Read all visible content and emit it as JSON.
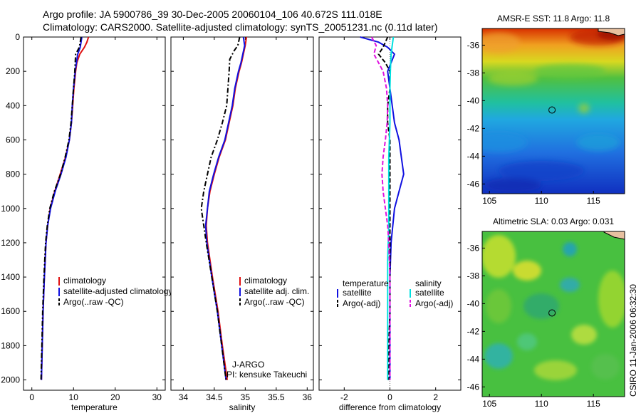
{
  "header": {
    "line1": "Argo profile: JA 5900786_39 30-Dec-2005 20060104_106 40.672S 111.018E",
    "line2": "Climatology: CARS2000. Satellite-adjusted climatology: synTS_20051231.nc (0.11d later)"
  },
  "side_label": "CSIRO 11-Jan-2006 06:32:30",
  "colors": {
    "climatology": "#e01010",
    "satellite": "#1010e0",
    "argo": "#000000",
    "satellite_sal": "#00e0e0",
    "argo_sal": "#e010e0",
    "map_circle": "#000000",
    "coast": "#000000"
  },
  "chart_data": [
    {
      "type": "line",
      "id": "temperature-profile",
      "xlabel": "temperature",
      "xlim": [
        -2,
        32
      ],
      "ylim": [
        2060,
        0
      ],
      "xticks": [
        0,
        10,
        20,
        30
      ],
      "xtick_labels": [
        "0",
        "10",
        "20",
        "30"
      ],
      "yticks": [
        0,
        200,
        400,
        600,
        800,
        1000,
        1200,
        1400,
        1600,
        1800,
        2000
      ],
      "ytick_labels": [
        "0",
        "200",
        "400",
        "600",
        "800",
        "1000",
        "1200",
        "1400",
        "1600",
        "1800",
        "2000"
      ],
      "legend": [
        "climatology",
        "satellite-adjusted climatology",
        "Argo(..raw -QC)"
      ],
      "series": [
        {
          "name": "climatology",
          "color_key": "climatology",
          "dash": "",
          "depth": [
            0,
            30,
            60,
            100,
            150,
            200,
            300,
            400,
            500,
            600,
            700,
            800,
            900,
            1000,
            1100,
            1200,
            1400,
            1600,
            1800,
            2000
          ],
          "values": [
            13.6,
            13.2,
            12.6,
            11.5,
            10.8,
            10.5,
            10.1,
            9.8,
            9.5,
            9.0,
            8.1,
            6.8,
            5.5,
            4.4,
            3.8,
            3.4,
            3.0,
            2.7,
            2.5,
            2.3
          ]
        },
        {
          "name": "satellite-adjusted climatology",
          "color_key": "satellite",
          "dash": "",
          "depth": [
            0,
            30,
            60,
            100,
            150,
            200,
            300,
            400,
            500,
            600,
            700,
            800,
            900,
            1000,
            1100,
            1200,
            1400,
            1600,
            1800,
            2000
          ],
          "values": [
            12.0,
            11.8,
            11.6,
            11.0,
            10.7,
            10.4,
            10.0,
            9.7,
            9.5,
            9.0,
            8.2,
            7.0,
            5.6,
            4.5,
            3.8,
            3.4,
            3.0,
            2.7,
            2.5,
            2.3
          ]
        },
        {
          "name": "Argo(..raw -QC)",
          "color_key": "argo",
          "dash": "7,3,2,3",
          "depth": [
            0,
            30,
            60,
            100,
            150,
            200,
            300,
            400,
            500,
            600,
            700,
            800,
            900,
            1000,
            1100,
            1200,
            1400,
            1600,
            1800,
            2000
          ],
          "values": [
            11.8,
            11.6,
            11.4,
            10.5,
            10.4,
            10.3,
            10.0,
            9.7,
            9.4,
            8.9,
            8.0,
            6.9,
            5.4,
            4.3,
            3.7,
            3.3,
            2.9,
            2.6,
            2.4,
            2.2
          ]
        }
      ]
    },
    {
      "type": "line",
      "id": "salinity-profile",
      "xlabel": "salinity",
      "xlim": [
        33.8,
        36.1
      ],
      "ylim": [
        2060,
        0
      ],
      "xticks": [
        34,
        34.5,
        35,
        35.5,
        36
      ],
      "xtick_labels": [
        "34",
        "34.5",
        "35",
        "35.5",
        "36"
      ],
      "legend": [
        "climatology",
        "satellite adj. clim.",
        "Argo(..raw -QC)"
      ],
      "annotation": [
        "J-ARGO",
        "PI: kensuke Takeuchi"
      ],
      "series": [
        {
          "name": "climatology",
          "color_key": "climatology",
          "dash": "",
          "depth": [
            0,
            50,
            100,
            150,
            200,
            300,
            400,
            500,
            600,
            700,
            800,
            900,
            1000,
            1100,
            1200,
            1400,
            1600,
            1800,
            2000
          ],
          "values": [
            35.02,
            35.0,
            34.97,
            34.94,
            34.9,
            34.84,
            34.8,
            34.74,
            34.68,
            34.58,
            34.5,
            34.43,
            34.39,
            34.37,
            34.39,
            34.47,
            34.56,
            34.63,
            34.71
          ]
        },
        {
          "name": "satellite adj. clim.",
          "color_key": "satellite",
          "dash": "",
          "depth": [
            0,
            50,
            100,
            150,
            200,
            300,
            400,
            500,
            600,
            700,
            800,
            900,
            1000,
            1100,
            1200,
            1400,
            1600,
            1800,
            2000
          ],
          "values": [
            34.97,
            34.99,
            34.96,
            34.93,
            34.89,
            34.83,
            34.79,
            34.73,
            34.67,
            34.57,
            34.49,
            34.42,
            34.39,
            34.36,
            34.38,
            34.46,
            34.55,
            34.62,
            34.69
          ]
        },
        {
          "name": "Argo(..raw -QC)",
          "color_key": "argo",
          "dash": "7,3,2,3",
          "depth": [
            0,
            50,
            80,
            130,
            200,
            300,
            400,
            500,
            600,
            700,
            800,
            900,
            1000,
            1100,
            1200,
            1400,
            1600,
            1800,
            2000
          ],
          "values": [
            34.91,
            34.88,
            34.82,
            34.75,
            34.74,
            34.72,
            34.7,
            34.63,
            34.55,
            34.45,
            34.39,
            34.33,
            34.29,
            34.33,
            34.37,
            34.46,
            34.55,
            34.62,
            34.69
          ]
        }
      ]
    },
    {
      "type": "line",
      "id": "difference-profile",
      "xlabel": "difference from climatology",
      "xlim": [
        -3.1,
        3.1
      ],
      "ylim": [
        2060,
        0
      ],
      "xticks": [
        -2,
        0,
        2
      ],
      "xtick_labels": [
        "-2",
        "0",
        "2"
      ],
      "legend_left_title": "temperature",
      "legend_right_title": "salinity",
      "legend_left": [
        "satellite",
        "Argo(-adj)"
      ],
      "legend_right": [
        "satellite",
        "Argo(-adj)"
      ],
      "series": [
        {
          "name": "temperature satellite",
          "color_key": "satellite",
          "dash": "",
          "depth": [
            0,
            30,
            60,
            100,
            150,
            200,
            300,
            400,
            500,
            600,
            700,
            800,
            900,
            1000,
            1200,
            1400,
            1600,
            1800,
            2000
          ],
          "values": [
            -1.3,
            -0.5,
            -0.1,
            0.2,
            0.05,
            -0.1,
            0.0,
            0.1,
            0.2,
            0.4,
            0.5,
            0.6,
            0.4,
            0.2,
            0.05,
            0.0,
            0.0,
            0.0,
            0.0
          ]
        },
        {
          "name": "temperature Argo(-adj)",
          "color_key": "argo",
          "dash": "6,3",
          "depth": [
            0,
            30,
            60,
            100,
            150,
            200,
            300,
            400,
            500,
            600,
            700,
            800,
            900,
            1000,
            1200,
            1400,
            1600,
            1800,
            2000
          ],
          "values": [
            -0.1,
            -0.2,
            -0.3,
            -0.5,
            -0.2,
            0.0,
            0.0,
            -0.1,
            -0.1,
            0.0,
            0.0,
            0.0,
            0.0,
            0.0,
            0.0,
            0.0,
            0.0,
            -0.05,
            -0.05
          ]
        },
        {
          "name": "salinity satellite",
          "color_key": "satellite_sal",
          "dash": "",
          "depth": [
            0,
            50,
            100,
            200,
            300,
            500,
            700,
            900,
            1100,
            1300,
            1500,
            1700,
            1900,
            2000
          ],
          "values": [
            0.15,
            0.1,
            0.05,
            0.02,
            0.0,
            0.0,
            -0.05,
            -0.05,
            -0.05,
            -0.1,
            -0.1,
            -0.1,
            -0.1,
            -0.1
          ]
        },
        {
          "name": "salinity Argo(-adj)",
          "color_key": "argo_sal",
          "dash": "6,3",
          "depth": [
            0,
            50,
            100,
            150,
            200,
            300,
            400,
            500,
            600,
            700,
            800,
            900,
            1000,
            1100,
            1200,
            1400,
            1600,
            1800,
            2000
          ],
          "values": [
            -0.8,
            -0.6,
            -0.7,
            -0.5,
            -0.3,
            -0.15,
            -0.1,
            -0.12,
            -0.2,
            -0.3,
            -0.35,
            -0.3,
            -0.2,
            -0.1,
            -0.05,
            0.0,
            0.0,
            0.0,
            0.0
          ]
        }
      ]
    },
    {
      "type": "heatmap",
      "id": "amsr-sst-map",
      "title": "AMSR-E SST: 11.8 Argo: 11.8",
      "xlim": [
        104.3,
        118
      ],
      "ylim": [
        -46.7,
        -34.8
      ],
      "xticks": [
        105,
        110,
        115
      ],
      "xtick_labels": [
        "105",
        "110",
        "115"
      ],
      "yticks": [
        -36,
        -38,
        -40,
        -42,
        -44,
        -46
      ],
      "ytick_labels": [
        "-36",
        "-38",
        "-40",
        "-42",
        "-44",
        "-46"
      ],
      "marker": {
        "lon": 111.018,
        "lat": -40.672
      }
    },
    {
      "type": "heatmap",
      "id": "altimetric-sla-map",
      "title": "Altimetric SLA: 0.03 Argo: 0.031",
      "xlim": [
        104.3,
        118
      ],
      "ylim": [
        -46.7,
        -34.8
      ],
      "xticks": [
        105,
        110,
        115
      ],
      "xtick_labels": [
        "105",
        "110",
        "115"
      ],
      "yticks": [
        -36,
        -38,
        -40,
        -42,
        -44,
        -46
      ],
      "ytick_labels": [
        "-36",
        "-38",
        "-40",
        "-42",
        "-44",
        "-46"
      ],
      "marker": {
        "lon": 111.018,
        "lat": -40.672
      }
    }
  ]
}
